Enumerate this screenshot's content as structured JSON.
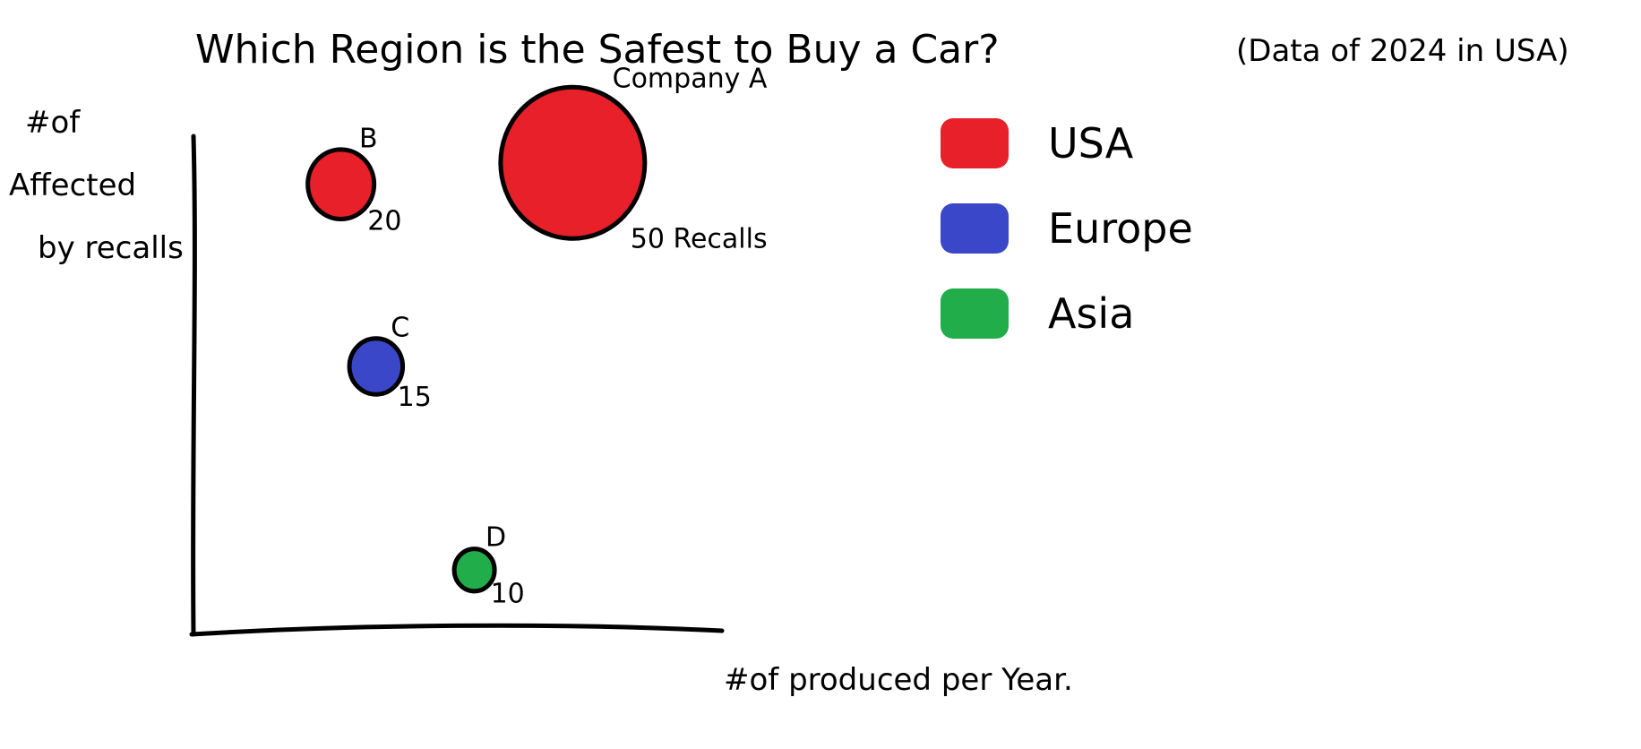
{
  "chart_data": {
    "type": "scatter",
    "title": "Which Region is the Safest to Buy a Car?",
    "subtitle": "(Data of 2024 in USA)",
    "xlabel": "#of produced per Year.",
    "ylabel": [
      "#of",
      "Affected",
      "by recalls"
    ],
    "grid": false,
    "legend_placement": "top-right",
    "legend": [
      {
        "name": "USA",
        "color": "#e8202a"
      },
      {
        "name": "Europe",
        "color": "#3b47c9"
      },
      {
        "name": "Asia",
        "color": "#22ad4b"
      }
    ],
    "points": [
      {
        "name": "Company A",
        "region": "USA",
        "recalls": 50,
        "recalls_label": "50 Recalls",
        "x": 5.4,
        "y": 8.8
      },
      {
        "name": "B",
        "region": "USA",
        "recalls": 20,
        "recalls_label": "20",
        "x": 2.1,
        "y": 8.4
      },
      {
        "name": "C",
        "region": "Europe",
        "recalls": 15,
        "recalls_label": "15",
        "x": 2.6,
        "y": 5.0
      },
      {
        "name": "D",
        "region": "Asia",
        "recalls": 10,
        "recalls_label": "10",
        "x": 4.0,
        "y": 1.2
      }
    ],
    "xlim": [
      0,
      10
    ],
    "ylim": [
      0,
      10
    ]
  }
}
